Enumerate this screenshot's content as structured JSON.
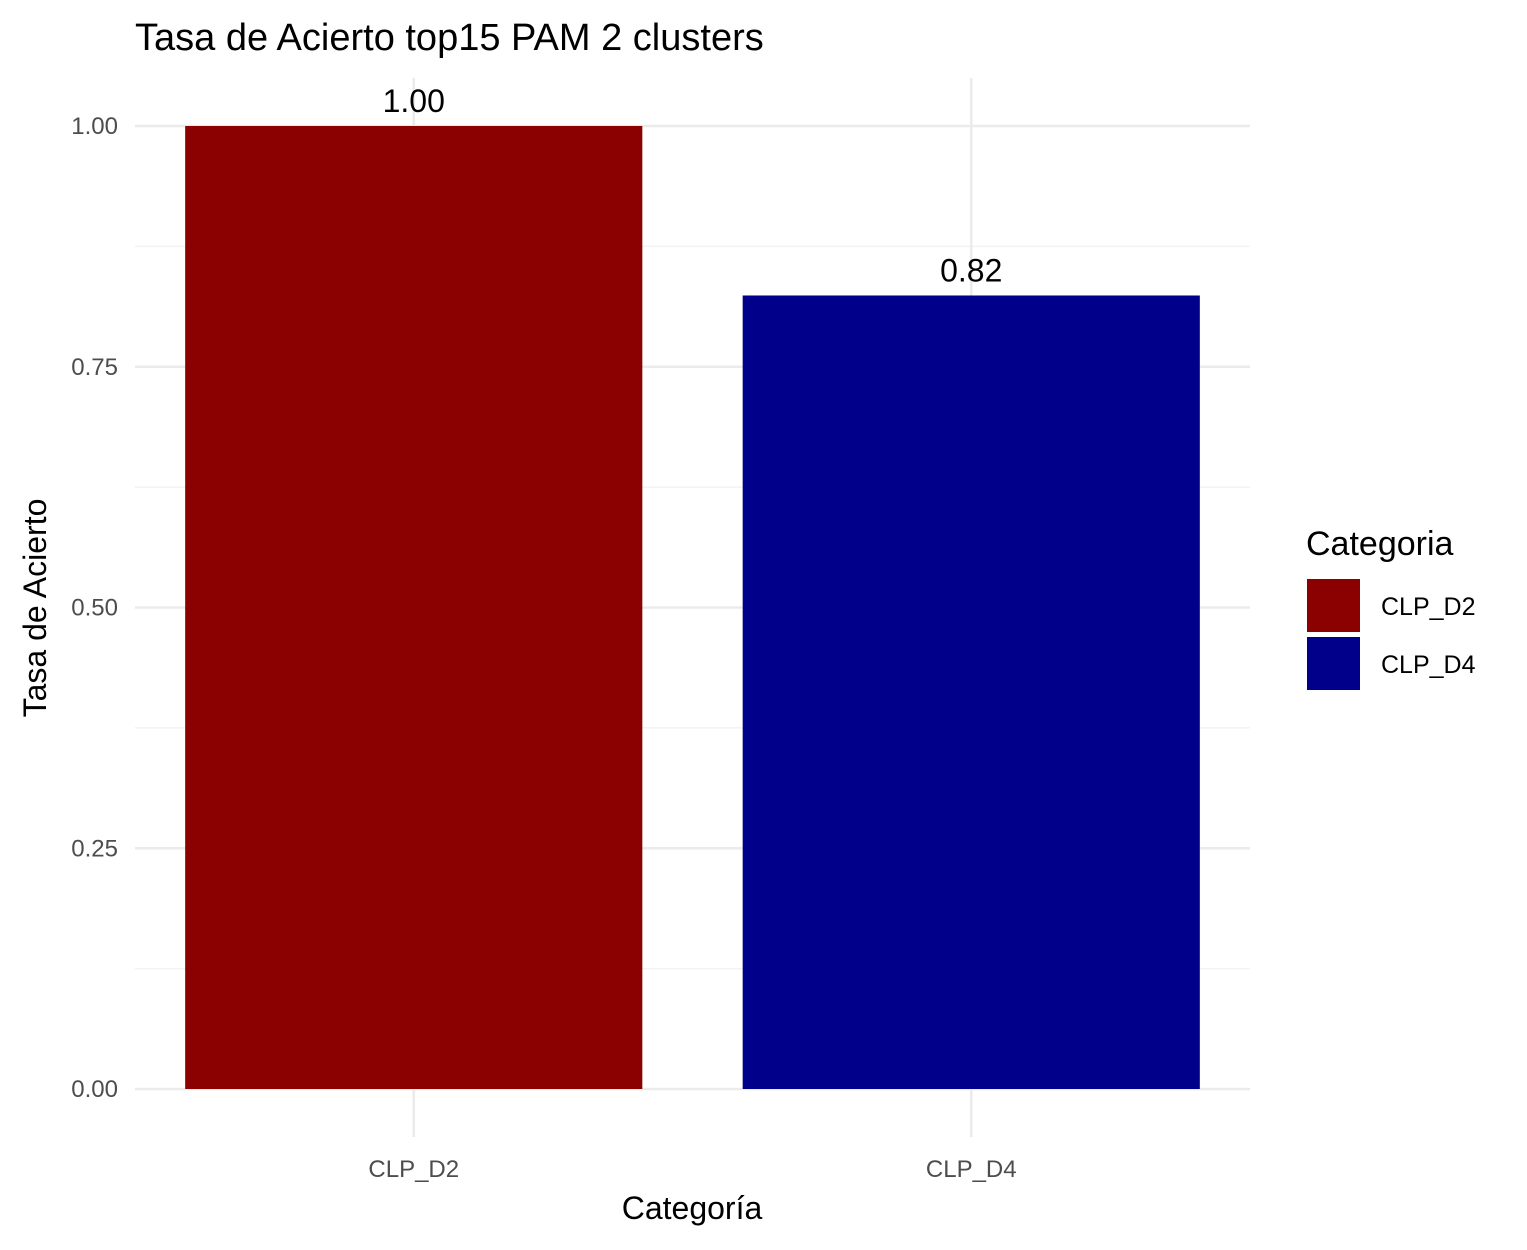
{
  "chart_data": {
    "type": "bar",
    "title": "Tasa de Acierto top15 PAM 2 clusters",
    "xlabel": "Categoría",
    "ylabel": "Tasa de Acierto",
    "categories": [
      "CLP_D2",
      "CLP_D4"
    ],
    "values": [
      1.0,
      0.824
    ],
    "data_labels": [
      "1.00",
      "0.82"
    ],
    "colors": [
      "#8B0000",
      "#00008B"
    ],
    "ylim": [
      0,
      1.05
    ],
    "yticks": [
      0,
      0.25,
      0.5,
      0.75,
      1.0
    ],
    "ytick_labels": [
      "0.00",
      "0.25",
      "0.50",
      "0.75",
      "1.00"
    ],
    "grid": true,
    "legend": {
      "title": "Categoria",
      "position": "right",
      "entries": [
        "CLP_D2",
        "CLP_D4"
      ]
    }
  }
}
